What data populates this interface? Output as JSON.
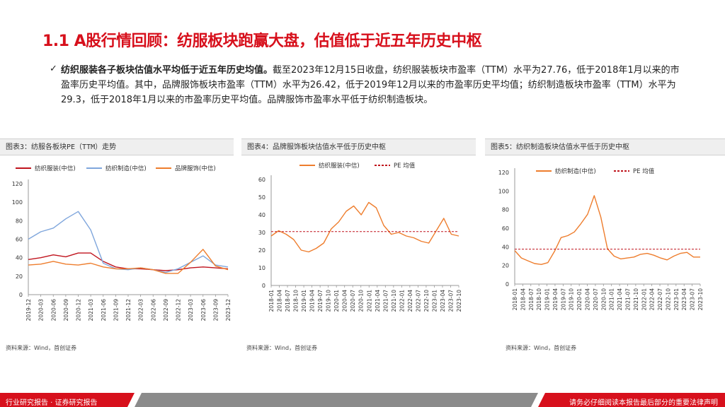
{
  "title": "1.1 A股行情回顾：纺服板块跑赢大盘，估值低于近五年历史中枢",
  "bullet": {
    "bold": "纺织服装各子板块估值水平均低于近五年历史均值。",
    "text": "截至2023年12月15日收盘，纺织服装板块市盈率（TTM）水平为27.76，低于2018年1月以来的市盈率历史平均值。其中，品牌服饰板块市盈率（TTM）水平为26.42，低于2019年12月以来的市盈率历史平均值；纺织制造板块市盈率（TTM）水平为29.3，低于2018年1月以来的市盈率历史平均值。品牌服饰市盈率水平低于纺织制造板块。"
  },
  "panels": [
    {
      "header": "图表3：纺服各板块PE（TTM）走势",
      "source": "资料来源：Wind，首创证券"
    },
    {
      "header": "图表4：品牌服饰板块估值水平低于历史中枢",
      "source": "资料来源：Wind，首创证券"
    },
    {
      "header": "图表5：纺织制造板块估值水平低于历史中枢",
      "source": "资料来源：Wind，首创证券"
    }
  ],
  "footer": {
    "left": "行业研究报告 · 证券研究报告",
    "right": "请务必仔细阅读本报告最后部分的重要法律声明"
  },
  "colors": {
    "accent": "#d7101c",
    "orange": "#ee7d2d",
    "blue": "#7fa6dc",
    "red": "#c0141e"
  },
  "chart_data": [
    {
      "type": "line",
      "ylim": [
        0,
        120
      ],
      "yticks": [
        0,
        20,
        40,
        60,
        80,
        100,
        120
      ],
      "xticks": [
        "2019-12",
        "2020-03",
        "2020-06",
        "2020-09",
        "2020-12",
        "2021-03",
        "2021-06",
        "2021-09",
        "2021-12",
        "2022-03",
        "2022-06",
        "2022-09",
        "2022-12",
        "2023-03",
        "2023-06",
        "2023-09",
        "2023-12"
      ],
      "series": [
        {
          "name": "纺织服装(中信)",
          "color": "#c0141e",
          "values": [
            38,
            40,
            43,
            41,
            45,
            45,
            36,
            30,
            28,
            28,
            27,
            26,
            27,
            29,
            30,
            29,
            28
          ]
        },
        {
          "name": "纺织制造(中信)",
          "color": "#7fa6dc",
          "values": [
            60,
            68,
            72,
            82,
            90,
            70,
            34,
            28,
            27,
            29,
            27,
            24,
            28,
            35,
            42,
            32,
            30
          ]
        },
        {
          "name": "品牌服饰(中信)",
          "color": "#ee7d2d",
          "values": [
            32,
            33,
            36,
            33,
            32,
            34,
            30,
            28,
            28,
            29,
            27,
            23,
            23,
            35,
            49,
            31,
            27
          ]
        }
      ]
    },
    {
      "type": "line",
      "ylim": [
        0,
        60
      ],
      "yticks": [
        0,
        10,
        20,
        30,
        40,
        50,
        60
      ],
      "xticks": [
        "2018-01",
        "2018-04",
        "2018-07",
        "2018-10",
        "2019-01",
        "2019-04",
        "2019-07",
        "2019-10",
        "2020-01",
        "2020-04",
        "2020-07",
        "2020-10",
        "2021-01",
        "2021-04",
        "2021-07",
        "2021-10",
        "2022-01",
        "2022-04",
        "2022-07",
        "2022-10",
        "2023-01",
        "2023-04",
        "2023-07",
        "2023-10"
      ],
      "series": [
        {
          "name": "纺织服装(中信)",
          "color": "#ee7d2d",
          "values": [
            28,
            31,
            29,
            26,
            20,
            19,
            21,
            24,
            32,
            36,
            42,
            45,
            40,
            47,
            44,
            34,
            29,
            30,
            28,
            27,
            25,
            24,
            31,
            38,
            29,
            28
          ]
        },
        {
          "name": "PE 均值",
          "color": "#c0141e",
          "dashed": true,
          "values": [
            30.5
          ]
        }
      ]
    },
    {
      "type": "line",
      "ylim": [
        0,
        120
      ],
      "yticks": [
        0,
        20,
        40,
        60,
        80,
        100,
        120
      ],
      "xticks": [
        "2018-01",
        "2018-04",
        "2018-07",
        "2018-10",
        "2019-01",
        "2019-04",
        "2019-07",
        "2019-10",
        "2020-01",
        "2020-04",
        "2020-07",
        "2020-10",
        "2021-01",
        "2021-04",
        "2021-07",
        "2021-10",
        "2022-01",
        "2022-04",
        "2022-07",
        "2022-10",
        "2023-01",
        "2023-04",
        "2023-07",
        "2023-10"
      ],
      "series": [
        {
          "name": "纺织制造(中信)",
          "color": "#ee7d2d",
          "values": [
            36,
            28,
            25,
            22,
            21,
            23,
            35,
            50,
            52,
            56,
            65,
            75,
            95,
            72,
            38,
            30,
            27,
            28,
            29,
            32,
            33,
            31,
            28,
            26,
            30,
            33,
            34,
            29,
            29
          ]
        },
        {
          "name": "PE 均值",
          "color": "#c0141e",
          "dashed": true,
          "values": [
            37.5
          ]
        }
      ]
    }
  ]
}
